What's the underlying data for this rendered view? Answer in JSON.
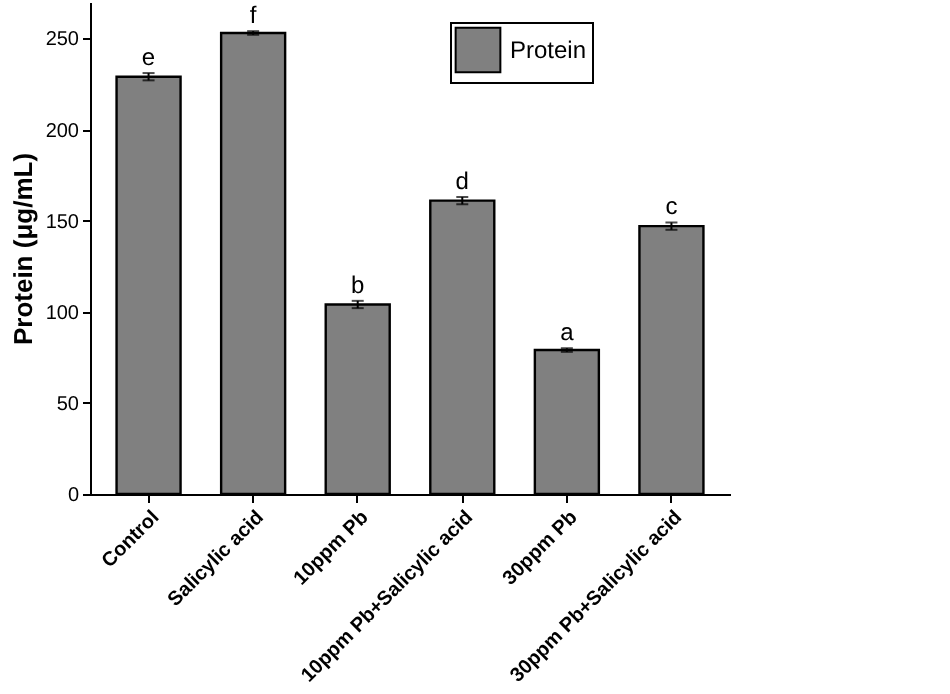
{
  "chart_data": {
    "type": "bar",
    "ylabel": "Protein (μg/mL)",
    "categories": [
      "Control",
      "Salicylic acid",
      "10ppm Pb",
      "10ppm Pb+Salicylic acid",
      "30ppm Pb",
      "30ppm Pb+Salicylic acid"
    ],
    "series": [
      {
        "name": "Protein",
        "color": "#808080",
        "values": [
          229,
          253,
          104,
          161,
          79,
          147
        ],
        "errors": [
          2,
          1,
          2,
          2,
          1,
          2
        ]
      }
    ],
    "ylim": [
      0,
      270
    ],
    "yticks": [
      0,
      50,
      100,
      150,
      200,
      250
    ],
    "grid": false,
    "legend": "top right",
    "annotations": [
      {
        "text": "e",
        "x": "Control",
        "y": 231
      },
      {
        "text": "f",
        "x": "Salicylic acid",
        "y": 254
      },
      {
        "text": "b",
        "x": "10ppm Pb",
        "y": 106
      },
      {
        "text": "d",
        "x": "10ppm Pb+Salicylic acid",
        "y": 163
      },
      {
        "text": "a",
        "x": "30ppm Pb",
        "y": 80
      },
      {
        "text": "c",
        "x": "30ppm Pb+Salicylic acid",
        "y": 149
      }
    ]
  }
}
